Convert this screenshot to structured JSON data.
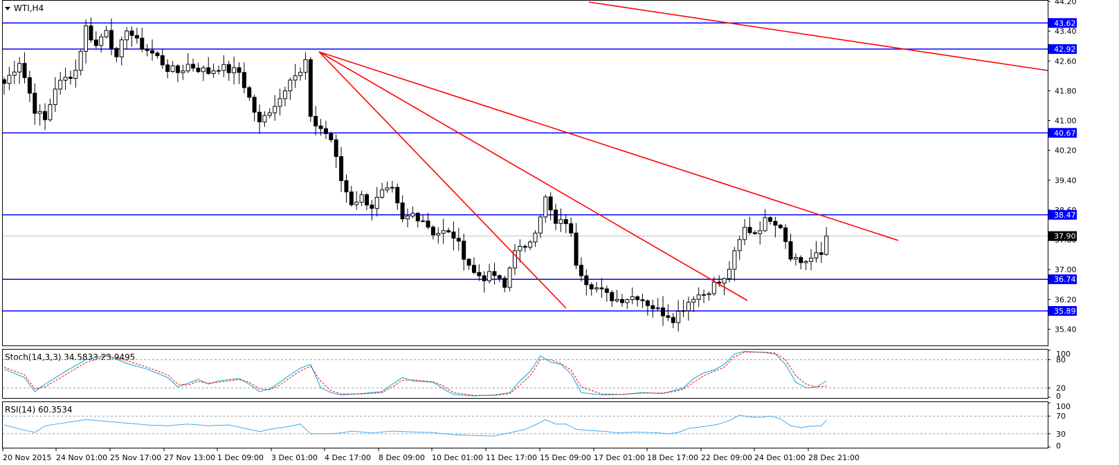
{
  "symbol_label": "WTI,H4",
  "colors": {
    "background": "#ffffff",
    "candle": "#000000",
    "level_line": "#0000ff",
    "trend_line": "#ff0000",
    "stoch_main": "#00a6d6",
    "stoch_signal": "#ff0000",
    "rsi": "#3fa9f5",
    "last_price_badge": "#000000",
    "level_badge": "#0000ff",
    "last_price_line": "#c0c0c0"
  },
  "chart_data": [
    {
      "type": "candlestick",
      "title": "WTI,H4",
      "ylim": [
        35.0,
        44.2
      ],
      "y_ticks": [
        "44.20",
        "43.40",
        "42.60",
        "41.80",
        "41.00",
        "40.20",
        "39.40",
        "38.60",
        "37.80",
        "37.00",
        "36.20",
        "35.40"
      ],
      "x_tick_labels": [
        "20 Nov 2015",
        "24 Nov 01:00",
        "25 Nov 17:00",
        "27 Nov 13:00",
        "1 Dec 09:00",
        "3 Dec 01:00",
        "4 Dec 17:00",
        "8 Dec 09:00",
        "10 Dec 01:00",
        "11 Dec 17:00",
        "15 Dec 09:00",
        "17 Dec 01:00",
        "18 Dec 17:00",
        "22 Dec 09:00",
        "24 Dec 01:00",
        "28 Dec 21:00"
      ],
      "horizontal_levels": [
        43.62,
        42.92,
        40.67,
        38.47,
        36.74,
        35.89
      ],
      "level_labels": [
        "43.62",
        "42.92",
        "40.67",
        "38.47",
        "36.74",
        "35.89"
      ],
      "last_price": 37.9,
      "last_price_label": "37.90",
      "close_path": [
        [
          0,
          42.0
        ],
        [
          3,
          42.6
        ],
        [
          6,
          41.3
        ],
        [
          8,
          41.0
        ],
        [
          10,
          41.9
        ],
        [
          14,
          42.35
        ],
        [
          16,
          43.5
        ],
        [
          18,
          43.0
        ],
        [
          20,
          43.5
        ],
        [
          22,
          42.6
        ],
        [
          24,
          43.5
        ],
        [
          26,
          43.1
        ],
        [
          28,
          42.9
        ],
        [
          30,
          42.7
        ],
        [
          32,
          42.4
        ],
        [
          34,
          42.3
        ],
        [
          36,
          42.5
        ],
        [
          38,
          42.4
        ],
        [
          40,
          42.3
        ],
        [
          42,
          42.45
        ],
        [
          44,
          42.35
        ],
        [
          46,
          42.3
        ],
        [
          48,
          41.6
        ],
        [
          50,
          40.9
        ],
        [
          52,
          41.3
        ],
        [
          54,
          41.6
        ],
        [
          56,
          42.2
        ],
        [
          58,
          42.25
        ],
        [
          59,
          42.6
        ],
        [
          60,
          41.0
        ],
        [
          62,
          40.8
        ],
        [
          64,
          40.5
        ],
        [
          66,
          39.4
        ],
        [
          68,
          38.8
        ],
        [
          70,
          38.95
        ],
        [
          72,
          38.7
        ],
        [
          74,
          39.05
        ],
        [
          76,
          39.1
        ],
        [
          78,
          38.3
        ],
        [
          80,
          38.5
        ],
        [
          82,
          38.35
        ],
        [
          84,
          38.0
        ],
        [
          86,
          38.0
        ],
        [
          88,
          37.9
        ],
        [
          90,
          37.4
        ],
        [
          92,
          36.9
        ],
        [
          94,
          36.8
        ],
        [
          96,
          36.85
        ],
        [
          98,
          36.5
        ],
        [
          100,
          37.6
        ],
        [
          102,
          37.5
        ],
        [
          104,
          38.1
        ],
        [
          106,
          38.9
        ],
        [
          108,
          38.2
        ],
        [
          110,
          38.3
        ],
        [
          111,
          37.9
        ],
        [
          112,
          37.2
        ],
        [
          114,
          36.7
        ],
        [
          116,
          36.5
        ],
        [
          118,
          36.3
        ],
        [
          120,
          36.2
        ],
        [
          122,
          36.25
        ],
        [
          124,
          36.3
        ],
        [
          126,
          36.1
        ],
        [
          128,
          35.9
        ],
        [
          130,
          35.8
        ],
        [
          131,
          35.7
        ],
        [
          133,
          36.0
        ],
        [
          135,
          36.3
        ],
        [
          137,
          36.35
        ],
        [
          139,
          36.6
        ],
        [
          141,
          36.7
        ],
        [
          143,
          37.4
        ],
        [
          145,
          38.1
        ],
        [
          147,
          38.0
        ],
        [
          149,
          38.3
        ],
        [
          150,
          38.4
        ],
        [
          152,
          38.2
        ],
        [
          154,
          37.4
        ],
        [
          156,
          37.2
        ],
        [
          158,
          37.3
        ],
        [
          160,
          37.4
        ],
        [
          161,
          37.9
        ]
      ]
    },
    {
      "type": "line",
      "title": "Stoch(14,3,3) 34.5833 23.9495",
      "ylim": [
        0,
        100
      ],
      "y_ticks": [
        "100",
        "80",
        "20",
        "0"
      ],
      "levels": [
        80,
        20
      ],
      "series": [
        {
          "name": "main",
          "points": [
            [
              0,
              60
            ],
            [
              4,
              42
            ],
            [
              6,
              12
            ],
            [
              8,
              28
            ],
            [
              12,
              55
            ],
            [
              16,
              80
            ],
            [
              20,
              90
            ],
            [
              24,
              72
            ],
            [
              28,
              60
            ],
            [
              32,
              42
            ],
            [
              34,
              22
            ],
            [
              36,
              30
            ],
            [
              38,
              38
            ],
            [
              40,
              28
            ],
            [
              42,
              35
            ],
            [
              46,
              40
            ],
            [
              48,
              28
            ],
            [
              50,
              12
            ],
            [
              52,
              18
            ],
            [
              54,
              32
            ],
            [
              56,
              48
            ],
            [
              58,
              62
            ],
            [
              60,
              70
            ],
            [
              62,
              20
            ],
            [
              64,
              10
            ],
            [
              66,
              5
            ],
            [
              70,
              8
            ],
            [
              74,
              12
            ],
            [
              76,
              28
            ],
            [
              78,
              42
            ],
            [
              80,
              35
            ],
            [
              84,
              32
            ],
            [
              86,
              18
            ],
            [
              88,
              6
            ],
            [
              92,
              3
            ],
            [
              96,
              5
            ],
            [
              99,
              10
            ],
            [
              101,
              35
            ],
            [
              103,
              55
            ],
            [
              105,
              88
            ],
            [
              107,
              75
            ],
            [
              109,
              70
            ],
            [
              111,
              50
            ],
            [
              113,
              10
            ],
            [
              117,
              5
            ],
            [
              121,
              6
            ],
            [
              125,
              10
            ],
            [
              129,
              8
            ],
            [
              131,
              14
            ],
            [
              133,
              20
            ],
            [
              135,
              40
            ],
            [
              137,
              52
            ],
            [
              139,
              58
            ],
            [
              141,
              70
            ],
            [
              143,
              92
            ],
            [
              145,
              98
            ],
            [
              149,
              95
            ],
            [
              151,
              92
            ],
            [
              153,
              70
            ],
            [
              155,
              32
            ],
            [
              157,
              20
            ],
            [
              159,
              22
            ],
            [
              161,
              34.58
            ]
          ]
        },
        {
          "name": "signal",
          "points": [
            [
              0,
              64
            ],
            [
              4,
              48
            ],
            [
              6,
              18
            ],
            [
              8,
              22
            ],
            [
              12,
              48
            ],
            [
              16,
              74
            ],
            [
              20,
              88
            ],
            [
              24,
              78
            ],
            [
              28,
              64
            ],
            [
              32,
              48
            ],
            [
              34,
              28
            ],
            [
              36,
              26
            ],
            [
              38,
              34
            ],
            [
              40,
              30
            ],
            [
              42,
              32
            ],
            [
              46,
              38
            ],
            [
              48,
              32
            ],
            [
              50,
              18
            ],
            [
              52,
              16
            ],
            [
              54,
              26
            ],
            [
              56,
              42
            ],
            [
              58,
              56
            ],
            [
              60,
              66
            ],
            [
              62,
              34
            ],
            [
              64,
              14
            ],
            [
              66,
              7
            ],
            [
              70,
              7
            ],
            [
              74,
              10
            ],
            [
              76,
              22
            ],
            [
              78,
              36
            ],
            [
              80,
              37
            ],
            [
              84,
              33
            ],
            [
              86,
              24
            ],
            [
              88,
              10
            ],
            [
              92,
              4
            ],
            [
              96,
              4
            ],
            [
              99,
              8
            ],
            [
              101,
              26
            ],
            [
              103,
              46
            ],
            [
              105,
              80
            ],
            [
              107,
              80
            ],
            [
              109,
              72
            ],
            [
              111,
              58
            ],
            [
              113,
              22
            ],
            [
              117,
              7
            ],
            [
              121,
              6
            ],
            [
              125,
              9
            ],
            [
              129,
              9
            ],
            [
              131,
              12
            ],
            [
              133,
              17
            ],
            [
              135,
              32
            ],
            [
              137,
              46
            ],
            [
              139,
              55
            ],
            [
              141,
              64
            ],
            [
              143,
              86
            ],
            [
              145,
              96
            ],
            [
              149,
              96
            ],
            [
              151,
              94
            ],
            [
              153,
              80
            ],
            [
              155,
              46
            ],
            [
              157,
              28
            ],
            [
              159,
              22
            ],
            [
              161,
              23.95
            ]
          ]
        }
      ]
    },
    {
      "type": "line",
      "title": "RSI(14) 60.3534",
      "ylim": [
        0,
        100
      ],
      "y_ticks": [
        "100",
        "70",
        "30",
        "0"
      ],
      "levels": [
        70,
        30
      ],
      "series": [
        {
          "name": "RSI(14)",
          "points": [
            [
              0,
              50
            ],
            [
              4,
              38
            ],
            [
              6,
              33
            ],
            [
              8,
              48
            ],
            [
              12,
              55
            ],
            [
              16,
              62
            ],
            [
              20,
              58
            ],
            [
              24,
              54
            ],
            [
              28,
              50
            ],
            [
              32,
              48
            ],
            [
              36,
              52
            ],
            [
              40,
              48
            ],
            [
              44,
              50
            ],
            [
              48,
              40
            ],
            [
              50,
              35
            ],
            [
              52,
              40
            ],
            [
              56,
              47
            ],
            [
              58,
              52
            ],
            [
              60,
              30
            ],
            [
              64,
              30
            ],
            [
              66,
              32
            ],
            [
              68,
              36
            ],
            [
              72,
              32
            ],
            [
              76,
              36
            ],
            [
              80,
              34
            ],
            [
              84,
              33
            ],
            [
              86,
              30
            ],
            [
              88,
              28
            ],
            [
              92,
              26
            ],
            [
              96,
              25
            ],
            [
              100,
              35
            ],
            [
              102,
              40
            ],
            [
              104,
              50
            ],
            [
              106,
              62
            ],
            [
              108,
              52
            ],
            [
              110,
              52
            ],
            [
              112,
              40
            ],
            [
              114,
              38
            ],
            [
              118,
              35
            ],
            [
              120,
              32
            ],
            [
              124,
              34
            ],
            [
              128,
              32
            ],
            [
              130,
              30
            ],
            [
              132,
              33
            ],
            [
              134,
              42
            ],
            [
              136,
              45
            ],
            [
              138,
              48
            ],
            [
              140,
              52
            ],
            [
              142,
              60
            ],
            [
              144,
              72
            ],
            [
              146,
              68
            ],
            [
              148,
              67
            ],
            [
              150,
              70
            ],
            [
              152,
              64
            ],
            [
              154,
              48
            ],
            [
              156,
              44
            ],
            [
              158,
              47
            ],
            [
              160,
              48
            ],
            [
              161,
              60.35
            ]
          ]
        }
      ]
    }
  ]
}
